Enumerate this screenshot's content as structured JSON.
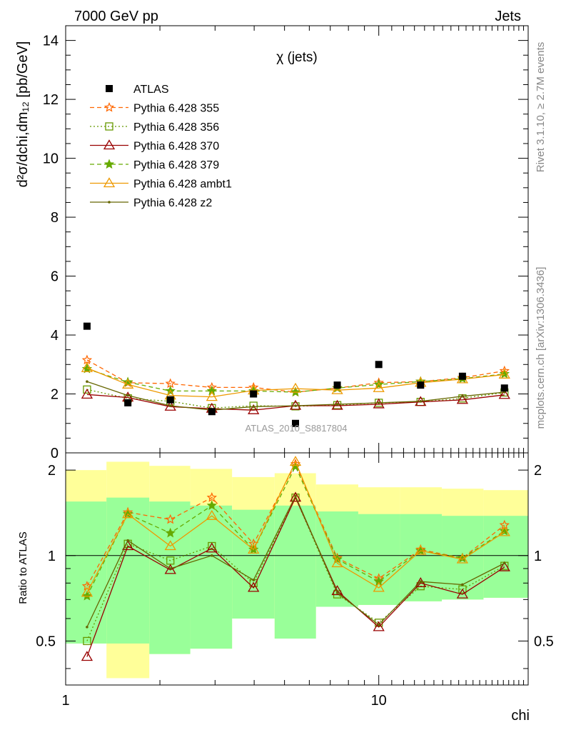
{
  "header": {
    "left": "7000 GeV pp",
    "right": "Jets"
  },
  "side_labels": {
    "rivet": "Rivet 3.1.10, ≥ 2.7M events",
    "mcplots": "mcplots.cern.ch [arXiv:1306.3436]"
  },
  "chart_data": {
    "type": "scatter",
    "title": "χ (jets)",
    "analysis_label": "ATLAS_2010_S8817804",
    "xlabel": "chi",
    "ylabel": "d²σ/dchi,dm₁₂ [pb/GeV]",
    "ratio_ylabel": "Ratio to ATLAS",
    "x_scale": "log",
    "xlim": [
      1,
      30
    ],
    "ylim": [
      0,
      14.5
    ],
    "ratio_ylim": [
      0.35,
      2.3
    ],
    "ratio_scale": "log",
    "x_ticks": [
      "1",
      "10"
    ],
    "y_ticks": [
      "0",
      "2",
      "4",
      "6",
      "8",
      "10",
      "12",
      "14"
    ],
    "ratio_ticks": [
      "0.5",
      "1",
      "2"
    ],
    "legend_position": "top-left",
    "bins": [
      {
        "x": 1.17,
        "lo": 1.0,
        "hi": 1.35
      },
      {
        "x": 1.58,
        "lo": 1.35,
        "hi": 1.85
      },
      {
        "x": 2.16,
        "lo": 1.85,
        "hi": 2.5
      },
      {
        "x": 2.93,
        "lo": 2.5,
        "hi": 3.4
      },
      {
        "x": 3.98,
        "lo": 3.4,
        "hi": 4.65
      },
      {
        "x": 5.42,
        "lo": 4.65,
        "hi": 6.3
      },
      {
        "x": 7.37,
        "lo": 6.3,
        "hi": 8.6
      },
      {
        "x": 10.0,
        "lo": 8.6,
        "hi": 11.7
      },
      {
        "x": 13.6,
        "lo": 11.7,
        "hi": 15.9
      },
      {
        "x": 18.5,
        "lo": 15.9,
        "hi": 21.6
      },
      {
        "x": 25.2,
        "lo": 21.6,
        "hi": 30.0
      }
    ],
    "ratio_band_yellow": [
      [
        0.49,
        2.0
      ],
      [
        0.37,
        2.14
      ],
      [
        0.45,
        2.07
      ],
      [
        0.47,
        2.02
      ],
      [
        0.6,
        1.89
      ],
      [
        0.51,
        1.95
      ],
      [
        0.66,
        1.78
      ],
      [
        0.67,
        1.74
      ],
      [
        0.69,
        1.74
      ],
      [
        0.7,
        1.72
      ],
      [
        0.71,
        1.7
      ]
    ],
    "ratio_band_green": [
      [
        0.49,
        1.55
      ],
      [
        0.49,
        1.6
      ],
      [
        0.45,
        1.55
      ],
      [
        0.47,
        1.5
      ],
      [
        0.6,
        1.45
      ],
      [
        0.51,
        1.5
      ],
      [
        0.66,
        1.43
      ],
      [
        0.67,
        1.4
      ],
      [
        0.69,
        1.4
      ],
      [
        0.7,
        1.38
      ],
      [
        0.71,
        1.38
      ]
    ],
    "data": {
      "name": "ATLAS",
      "values": [
        4.3,
        1.7,
        1.8,
        1.4,
        2.0,
        1.0,
        2.3,
        3.0,
        2.3,
        2.6,
        2.2
      ]
    },
    "series": [
      {
        "name": "Pythia 6.428 355",
        "color": "#ff6600",
        "dash": "6,4",
        "marker": "star",
        "values": [
          3.15,
          2.38,
          2.35,
          2.22,
          2.22,
          2.06,
          2.2,
          2.38,
          2.42,
          2.55,
          2.78
        ],
        "ratio": [
          0.78,
          1.42,
          1.34,
          1.6,
          1.1,
          2.1,
          0.98,
          0.83,
          1.05,
          0.98,
          1.28
        ]
      },
      {
        "name": "Pythia 6.428 356",
        "color": "#669900",
        "dash": "2,3",
        "marker": "square",
        "values": [
          2.15,
          1.85,
          1.75,
          1.52,
          1.6,
          1.58,
          1.62,
          1.7,
          1.73,
          1.85,
          2.05
        ],
        "ratio": [
          0.5,
          1.1,
          0.96,
          1.08,
          0.8,
          1.6,
          0.73,
          0.58,
          0.78,
          0.76,
          0.92
        ]
      },
      {
        "name": "Pythia 6.428 370",
        "color": "#990000",
        "dash": "",
        "marker": "triangle",
        "values": [
          1.98,
          1.88,
          1.57,
          1.5,
          1.45,
          1.6,
          1.6,
          1.65,
          1.73,
          1.8,
          1.97
        ],
        "ratio": [
          0.44,
          1.08,
          0.89,
          1.06,
          0.77,
          1.6,
          0.75,
          0.56,
          0.8,
          0.73,
          0.91
        ]
      },
      {
        "name": "Pythia 6.428 379",
        "color": "#66aa00",
        "dash": "6,4",
        "marker": "star",
        "values": [
          2.85,
          2.4,
          2.1,
          2.1,
          2.1,
          2.06,
          2.2,
          2.32,
          2.42,
          2.52,
          2.68
        ],
        "ratio": [
          0.72,
          1.4,
          1.2,
          1.5,
          1.05,
          2.06,
          0.97,
          0.81,
          1.04,
          0.98,
          1.22
        ]
      },
      {
        "name": "Pythia 6.428 ambt1",
        "color": "#ee9900",
        "dash": "",
        "marker": "triangle",
        "values": [
          2.88,
          2.32,
          1.95,
          1.9,
          2.12,
          2.18,
          2.13,
          2.2,
          2.38,
          2.5,
          2.66
        ],
        "ratio": [
          0.74,
          1.4,
          1.08,
          1.38,
          1.05,
          2.14,
          0.94,
          0.77,
          1.04,
          0.97,
          1.21
        ]
      },
      {
        "name": "Pythia 6.428 z2",
        "color": "#666600",
        "dash": "",
        "marker": "dot",
        "values": [
          2.42,
          1.95,
          1.6,
          1.45,
          1.57,
          1.6,
          1.65,
          1.7,
          1.75,
          1.92,
          2.06
        ],
        "ratio": [
          0.56,
          1.13,
          0.9,
          1.0,
          0.82,
          1.62,
          0.74,
          0.57,
          0.81,
          0.79,
          0.94
        ]
      }
    ]
  }
}
